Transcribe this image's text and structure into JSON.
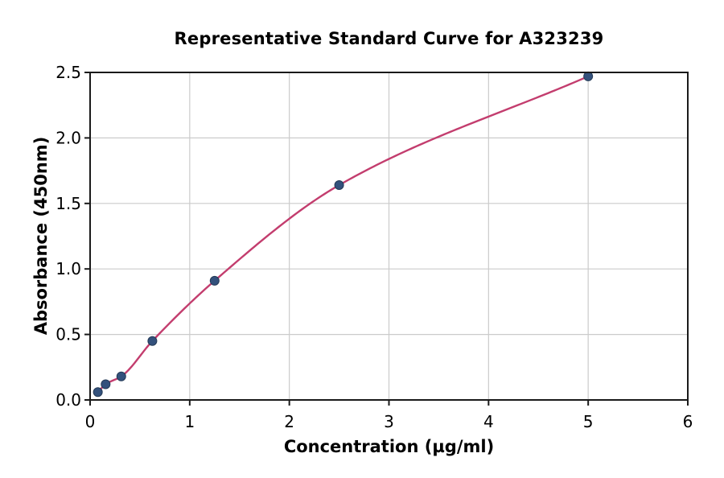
{
  "chart_data": {
    "type": "line",
    "title": "Representative Standard Curve for A323239",
    "xlabel": "Concentration (µg/ml)",
    "ylabel": "Absorbance (450nm)",
    "x": [
      0.078,
      0.156,
      0.313,
      0.625,
      1.25,
      2.5,
      5
    ],
    "y": [
      0.06,
      0.12,
      0.18,
      0.45,
      0.91,
      1.64,
      2.47
    ],
    "xlim": [
      0,
      6
    ],
    "ylim": [
      0,
      2.5
    ],
    "xticks": [
      0,
      1,
      2,
      3,
      4,
      5,
      6
    ],
    "xtick_labels": [
      "0",
      "1",
      "2",
      "3",
      "4",
      "5",
      "6"
    ],
    "yticks": [
      0,
      0.5,
      1.0,
      1.5,
      2.0,
      2.5
    ],
    "ytick_labels": [
      "0.0",
      "0.5",
      "1.0",
      "1.5",
      "2.0",
      "2.5"
    ],
    "grid": true,
    "legend": null,
    "colors": {
      "line": "#C33D6E",
      "marker": "#33517C",
      "marker_edge": "#243A56",
      "grid": "#CBCBCB",
      "spine": "#1A1A1A",
      "text": "#000000",
      "background": "#FFFFFF"
    }
  }
}
